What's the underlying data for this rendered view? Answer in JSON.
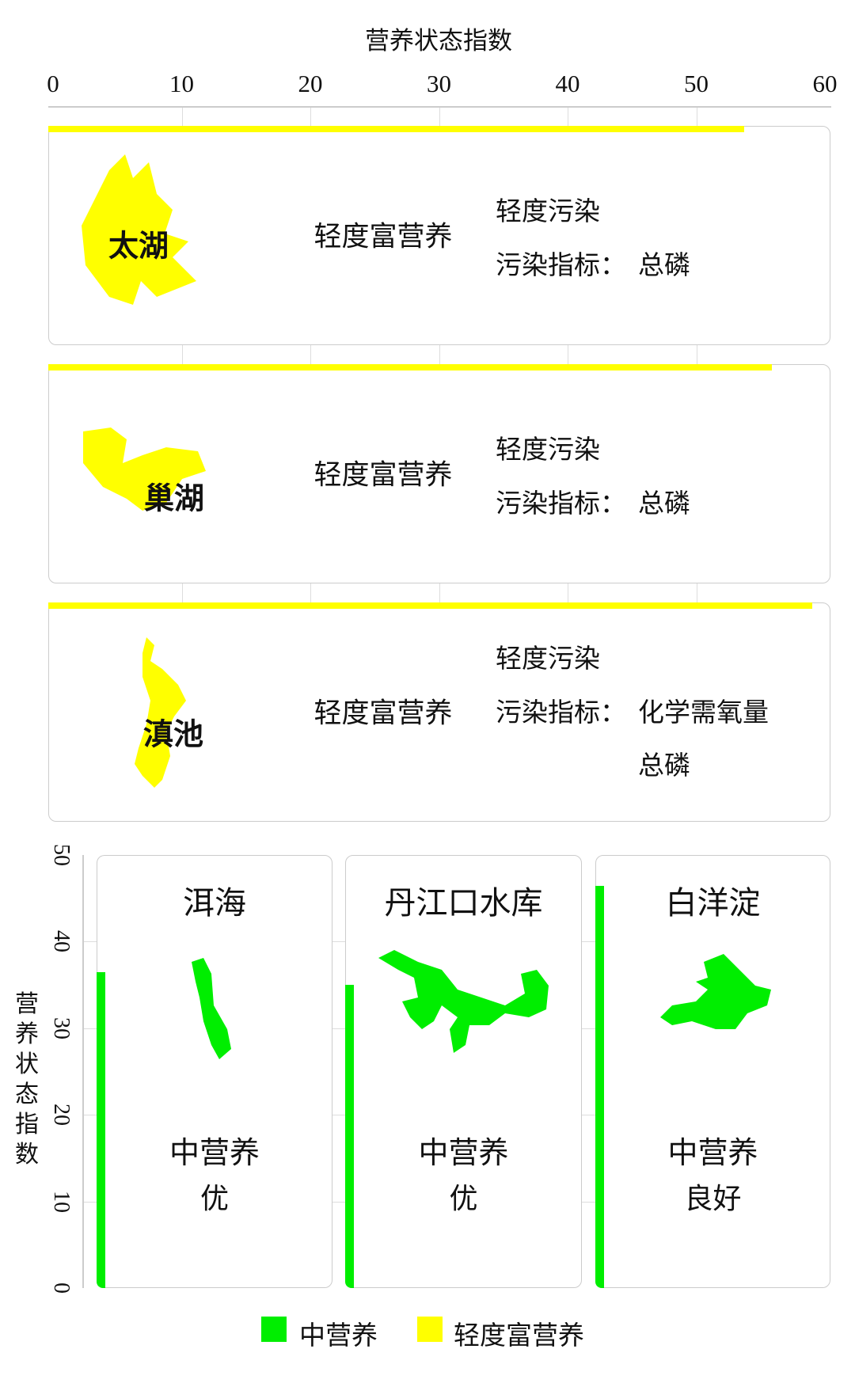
{
  "chart_data": [
    {
      "type": "bar",
      "orientation": "horizontal",
      "title": "营养状态指数",
      "xlim": [
        0,
        60
      ],
      "xticks": [
        "0",
        "10",
        "20",
        "30",
        "40",
        "50",
        "60"
      ],
      "grid": true,
      "categories": [
        "太湖",
        "巢湖",
        "滇池"
      ],
      "values": [
        53.7,
        55.9,
        59.0
      ],
      "colors": [
        "#ffff00",
        "#ffff00",
        "#ffff00"
      ],
      "levels": [
        "轻度富营养",
        "轻度富营养",
        "轻度富营养"
      ],
      "notes": [
        {
          "status": "轻度污染",
          "indicator_label": "污染指标：",
          "indicators": [
            "总磷"
          ]
        },
        {
          "status": "轻度污染",
          "indicator_label": "污染指标：",
          "indicators": [
            "总磷"
          ]
        },
        {
          "status": "轻度污染",
          "indicator_label": "污染指标：",
          "indicators": [
            "化学需氧量",
            "总磷"
          ]
        }
      ]
    },
    {
      "type": "bar",
      "orientation": "vertical",
      "ylabel": "营养状态指数",
      "ylim": [
        0,
        50
      ],
      "yticks": [
        "0",
        "10",
        "20",
        "30",
        "40",
        "50"
      ],
      "grid": true,
      "categories": [
        "洱海",
        "丹江口水库",
        "白洋淀"
      ],
      "values": [
        36.5,
        35.0,
        46.4
      ],
      "colors": [
        "#00ee00",
        "#00ee00",
        "#00ee00"
      ],
      "levels": [
        "中营养",
        "中营养",
        "中营养"
      ],
      "status": [
        "优",
        "优",
        "良好"
      ]
    }
  ],
  "legend": [
    {
      "label": "中营养",
      "color": "#00ee00"
    },
    {
      "label": "轻度富营养",
      "color": "#ffff00"
    }
  ]
}
